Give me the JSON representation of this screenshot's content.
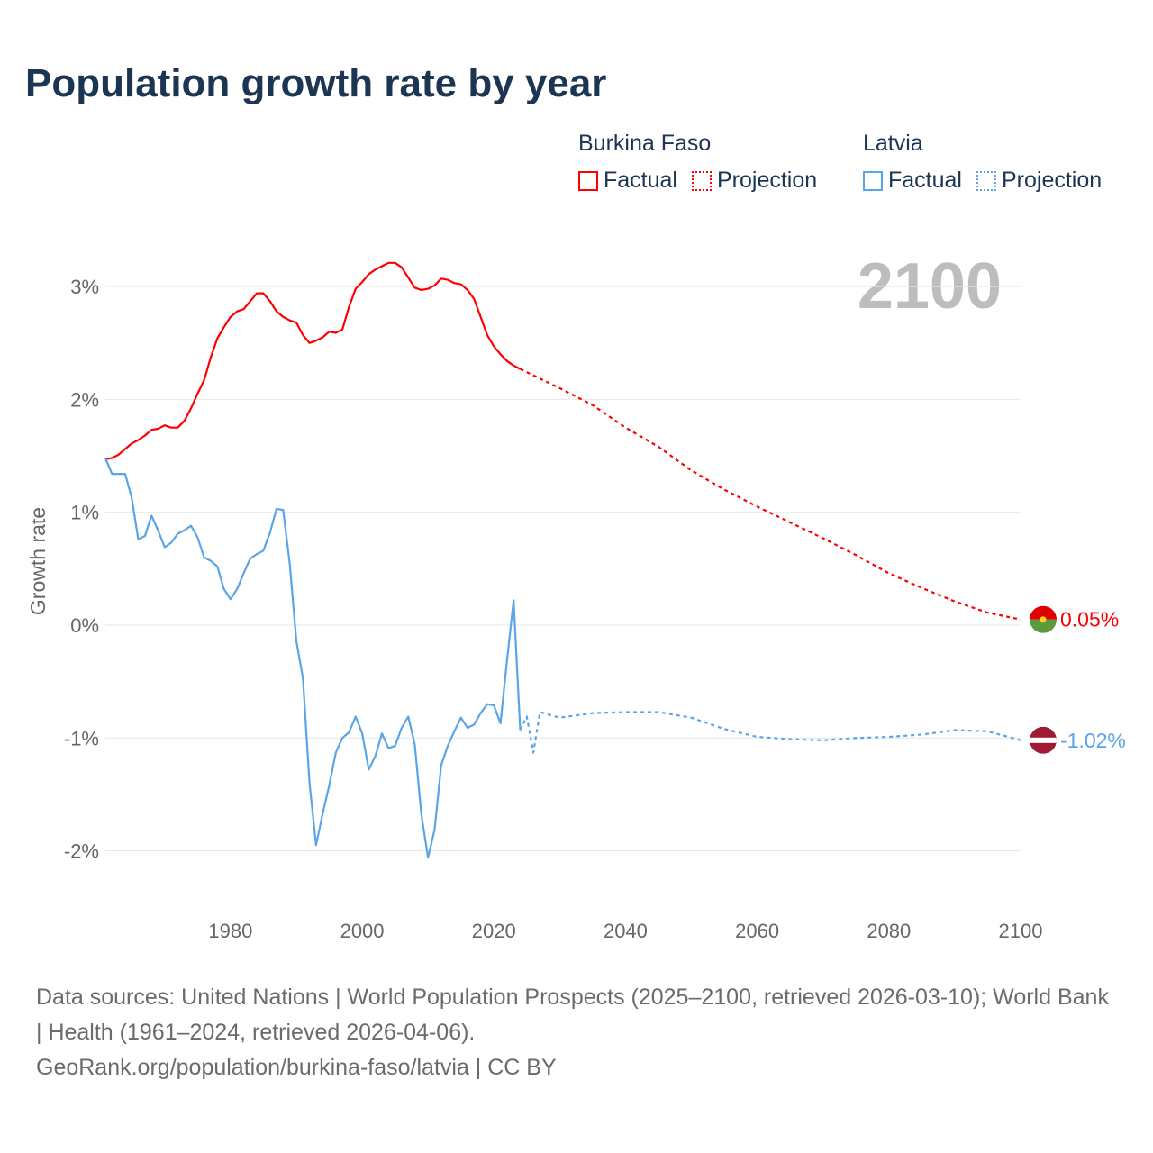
{
  "title": "Population growth rate by year",
  "legend": [
    {
      "country": "Burkina Faso",
      "factual_label": "Factual",
      "projection_label": "Projection",
      "color": "#ff0000"
    },
    {
      "country": "Latvia",
      "factual_label": "Factual",
      "projection_label": "Projection",
      "color": "#5aa5e8"
    }
  ],
  "year_display": "2100",
  "chart_data": {
    "type": "line",
    "ylabel": "Growth rate",
    "xlabel": "",
    "xlim": [
      1961,
      2100
    ],
    "ylim": [
      -2.5,
      3.3
    ],
    "x_ticks": [
      1980,
      2000,
      2020,
      2040,
      2060,
      2080,
      2100
    ],
    "x_tick_labels": [
      "1980",
      "2000",
      "2020",
      "2040",
      "2060",
      "2080",
      "2100"
    ],
    "y_ticks": [
      -2,
      -1,
      0,
      1,
      2,
      3
    ],
    "y_tick_labels": [
      "-2%",
      "-1%",
      "0%",
      "1%",
      "2%",
      "3%"
    ],
    "grid": true,
    "series": [
      {
        "name": "Burkina Faso Factual",
        "color": "#ff0000",
        "style": "solid",
        "x": [
          1961,
          1962,
          1963,
          1964,
          1965,
          1966,
          1967,
          1968,
          1969,
          1970,
          1971,
          1972,
          1973,
          1974,
          1975,
          1976,
          1977,
          1978,
          1979,
          1980,
          1981,
          1982,
          1983,
          1984,
          1985,
          1986,
          1987,
          1988,
          1989,
          1990,
          1991,
          1992,
          1993,
          1994,
          1995,
          1996,
          1997,
          1998,
          1999,
          2000,
          2001,
          2002,
          2003,
          2004,
          2005,
          2006,
          2007,
          2008,
          2009,
          2010,
          2011,
          2012,
          2013,
          2014,
          2015,
          2016,
          2017,
          2018,
          2019,
          2020,
          2021,
          2022,
          2023,
          2024
        ],
        "values": [
          1.47,
          1.48,
          1.51,
          1.56,
          1.61,
          1.64,
          1.68,
          1.73,
          1.74,
          1.77,
          1.75,
          1.75,
          1.81,
          1.92,
          2.05,
          2.17,
          2.37,
          2.54,
          2.64,
          2.73,
          2.78,
          2.8,
          2.87,
          2.94,
          2.94,
          2.87,
          2.78,
          2.73,
          2.7,
          2.68,
          2.57,
          2.5,
          2.52,
          2.55,
          2.6,
          2.59,
          2.62,
          2.82,
          2.98,
          3.04,
          3.11,
          3.15,
          3.18,
          3.21,
          3.21,
          3.17,
          3.08,
          2.99,
          2.97,
          2.98,
          3.01,
          3.07,
          3.06,
          3.03,
          3.02,
          2.97,
          2.89,
          2.73,
          2.57,
          2.47,
          2.4,
          2.34,
          2.3,
          2.27
        ]
      },
      {
        "name": "Burkina Faso Projection",
        "color": "#ff0000",
        "style": "dotted",
        "x": [
          2024,
          2030,
          2035,
          2040,
          2045,
          2050,
          2055,
          2060,
          2065,
          2070,
          2075,
          2080,
          2085,
          2090,
          2095,
          2100
        ],
        "values": [
          2.27,
          2.1,
          1.95,
          1.75,
          1.58,
          1.37,
          1.2,
          1.05,
          0.91,
          0.77,
          0.62,
          0.46,
          0.33,
          0.21,
          0.11,
          0.05
        ]
      },
      {
        "name": "Latvia Factual",
        "color": "#5aa5e8",
        "style": "solid",
        "x": [
          1961,
          1962,
          1963,
          1964,
          1965,
          1966,
          1967,
          1968,
          1969,
          1970,
          1971,
          1972,
          1973,
          1974,
          1975,
          1976,
          1977,
          1978,
          1979,
          1980,
          1981,
          1982,
          1983,
          1984,
          1985,
          1986,
          1987,
          1988,
          1989,
          1990,
          1991,
          1992,
          1993,
          1994,
          1995,
          1996,
          1997,
          1998,
          1999,
          2000,
          2001,
          2002,
          2003,
          2004,
          2005,
          2006,
          2007,
          2008,
          2009,
          2010,
          2011,
          2012,
          2013,
          2014,
          2015,
          2016,
          2017,
          2018,
          2019,
          2020,
          2021,
          2022,
          2023,
          2024
        ],
        "values": [
          1.48,
          1.34,
          1.34,
          1.34,
          1.13,
          0.76,
          0.79,
          0.97,
          0.84,
          0.69,
          0.73,
          0.81,
          0.84,
          0.88,
          0.78,
          0.6,
          0.57,
          0.52,
          0.32,
          0.23,
          0.32,
          0.46,
          0.59,
          0.63,
          0.66,
          0.82,
          1.03,
          1.02,
          0.54,
          -0.14,
          -0.47,
          -1.4,
          -1.95,
          -1.67,
          -1.42,
          -1.13,
          -1.0,
          -0.95,
          -0.81,
          -0.96,
          -1.28,
          -1.16,
          -0.96,
          -1.09,
          -1.07,
          -0.91,
          -0.81,
          -1.06,
          -1.68,
          -2.06,
          -1.81,
          -1.24,
          -1.07,
          -0.94,
          -0.82,
          -0.91,
          -0.88,
          -0.78,
          -0.7,
          -0.71,
          -0.87,
          -0.31,
          0.22,
          -0.93
        ]
      },
      {
        "name": "Latvia Projection",
        "color": "#5aa5e8",
        "style": "dotted",
        "x": [
          2024,
          2025,
          2026,
          2027,
          2030,
          2035,
          2040,
          2045,
          2050,
          2055,
          2060,
          2065,
          2070,
          2075,
          2080,
          2085,
          2090,
          2095,
          2100
        ],
        "values": [
          -0.93,
          -0.81,
          -1.13,
          -0.77,
          -0.82,
          -0.78,
          -0.77,
          -0.77,
          -0.82,
          -0.92,
          -0.99,
          -1.01,
          -1.02,
          -1.0,
          -0.99,
          -0.97,
          -0.93,
          -0.94,
          -1.02
        ]
      }
    ],
    "end_labels": [
      {
        "country": "Burkina Faso",
        "text": "0.05%",
        "value": 0.05,
        "color": "#ff0000"
      },
      {
        "country": "Latvia",
        "text": "-1.02%",
        "value": -1.02,
        "color": "#5aa5e8"
      }
    ]
  },
  "footer": {
    "sources": "Data sources: United Nations | World Population Prospects (2025–2100, retrieved 2026-03-10); World Bank | Health (1961–2024, retrieved 2026-04-06).",
    "credit": "GeoRank.org/population/burkina-faso/latvia | CC BY"
  }
}
